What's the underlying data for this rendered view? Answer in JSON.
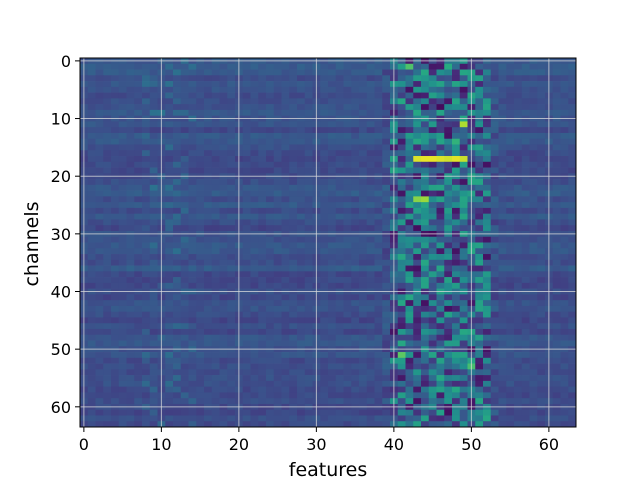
{
  "chart_data": {
    "type": "heatmap",
    "title": "",
    "xlabel": "features",
    "ylabel": "channels",
    "xlim": [
      -0.5,
      63.5
    ],
    "ylim": [
      63.5,
      -0.5
    ],
    "xticks": [
      0,
      10,
      20,
      30,
      40,
      50,
      60
    ],
    "yticks": [
      0,
      10,
      20,
      30,
      40,
      50,
      60
    ],
    "xtick_labels": [
      "0",
      "10",
      "20",
      "30",
      "40",
      "50",
      "60"
    ],
    "ytick_labels": [
      "0",
      "10",
      "20",
      "30",
      "40",
      "50",
      "60"
    ],
    "grid": true,
    "colormap": "viridis",
    "n_channels": 64,
    "n_features": 64,
    "value_range": [
      0,
      1
    ],
    "baseline_value": 0.25,
    "active_band_features": [
      39,
      53
    ],
    "hot_cells": [
      {
        "channel": 1,
        "feature": 42,
        "value": 0.72
      },
      {
        "channel": 1,
        "feature": 47,
        "value": 0.62
      },
      {
        "channel": 2,
        "feature": 44,
        "value": 0.6
      },
      {
        "channel": 7,
        "feature": 41,
        "value": 0.6
      },
      {
        "channel": 8,
        "feature": 44,
        "value": 0.05
      },
      {
        "channel": 8,
        "feature": 46,
        "value": 0.03
      },
      {
        "channel": 11,
        "feature": 49,
        "value": 0.88
      },
      {
        "channel": 14,
        "feature": 43,
        "value": 0.6
      },
      {
        "channel": 14,
        "feature": 48,
        "value": 0.65
      },
      {
        "channel": 17,
        "feature": 43,
        "value": 0.95
      },
      {
        "channel": 17,
        "feature": 44,
        "value": 0.97
      },
      {
        "channel": 17,
        "feature": 45,
        "value": 0.97
      },
      {
        "channel": 17,
        "feature": 46,
        "value": 0.95
      },
      {
        "channel": 17,
        "feature": 47,
        "value": 0.93
      },
      {
        "channel": 17,
        "feature": 48,
        "value": 0.96
      },
      {
        "channel": 17,
        "feature": 49,
        "value": 0.92
      },
      {
        "channel": 24,
        "feature": 43,
        "value": 0.82
      },
      {
        "channel": 24,
        "feature": 44,
        "value": 0.85
      },
      {
        "channel": 26,
        "feature": 47,
        "value": 0.55
      },
      {
        "channel": 29,
        "feature": 43,
        "value": 0.04
      },
      {
        "channel": 30,
        "feature": 44,
        "value": 0.05
      },
      {
        "channel": 30,
        "feature": 45,
        "value": 0.03
      },
      {
        "channel": 41,
        "feature": 42,
        "value": 0.6
      },
      {
        "channel": 42,
        "feature": 44,
        "value": 0.05
      },
      {
        "channel": 47,
        "feature": 49,
        "value": 0.6
      },
      {
        "channel": 49,
        "feature": 48,
        "value": 0.55
      },
      {
        "channel": 51,
        "feature": 41,
        "value": 0.75
      },
      {
        "channel": 53,
        "feature": 50,
        "value": 0.7
      },
      {
        "channel": 61,
        "feature": 47,
        "value": 0.04
      },
      {
        "channel": 63,
        "feature": 51,
        "value": 0.55
      }
    ]
  }
}
